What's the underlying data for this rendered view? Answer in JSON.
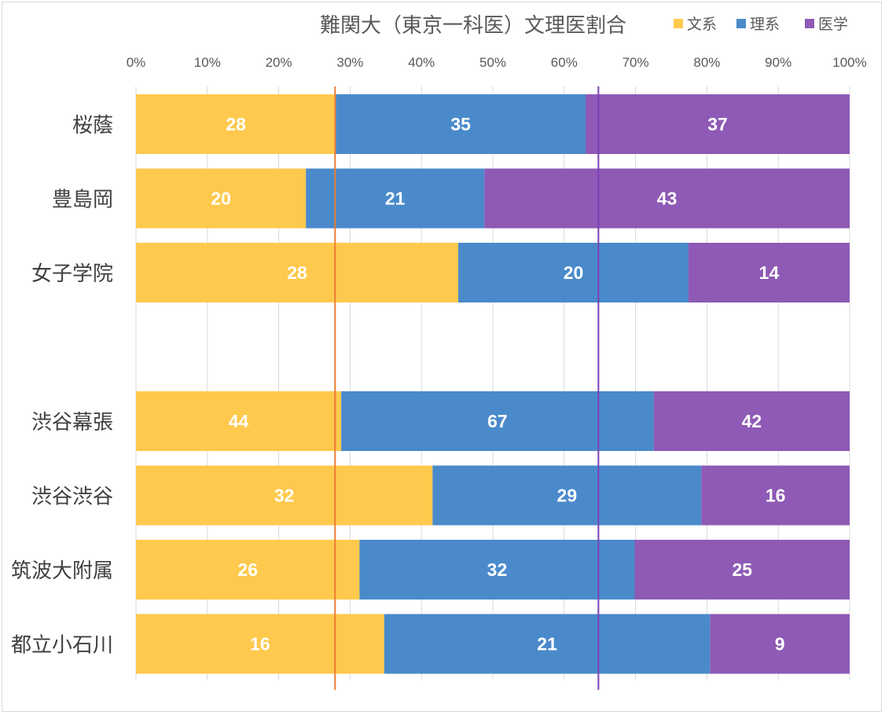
{
  "chart_data": {
    "type": "bar",
    "orientation": "horizontal",
    "stacking": "percent",
    "title": "難関大（東京一科医）文理医割合",
    "categories": [
      "桜蔭",
      "豊島岡",
      "女子学院",
      "",
      "渋谷幕張",
      "渋谷渋谷",
      "筑波大附属",
      "都立小石川"
    ],
    "series": [
      {
        "name": "文系",
        "color": "#FFC94D",
        "values": [
          28,
          20,
          28,
          null,
          44,
          32,
          26,
          16
        ]
      },
      {
        "name": "理系",
        "color": "#4A8ACB",
        "values": [
          35,
          21,
          20,
          null,
          67,
          29,
          32,
          21
        ]
      },
      {
        "name": "医学",
        "color": "#8E5AB5",
        "values": [
          37,
          43,
          14,
          null,
          42,
          16,
          25,
          9
        ]
      }
    ],
    "x_axis": {
      "range": [
        0,
        100
      ],
      "ticks": [
        "0%",
        "10%",
        "20%",
        "30%",
        "40%",
        "50%",
        "60%",
        "70%",
        "80%",
        "90%",
        "100%"
      ],
      "position": "top"
    },
    "reference_lines": [
      {
        "value": 27.9,
        "color": "#ED7D31"
      },
      {
        "value": 64.8,
        "color": "#7A3FB8"
      }
    ],
    "grid": true,
    "legend": "top-right",
    "data_label_color": "#ffffff"
  }
}
